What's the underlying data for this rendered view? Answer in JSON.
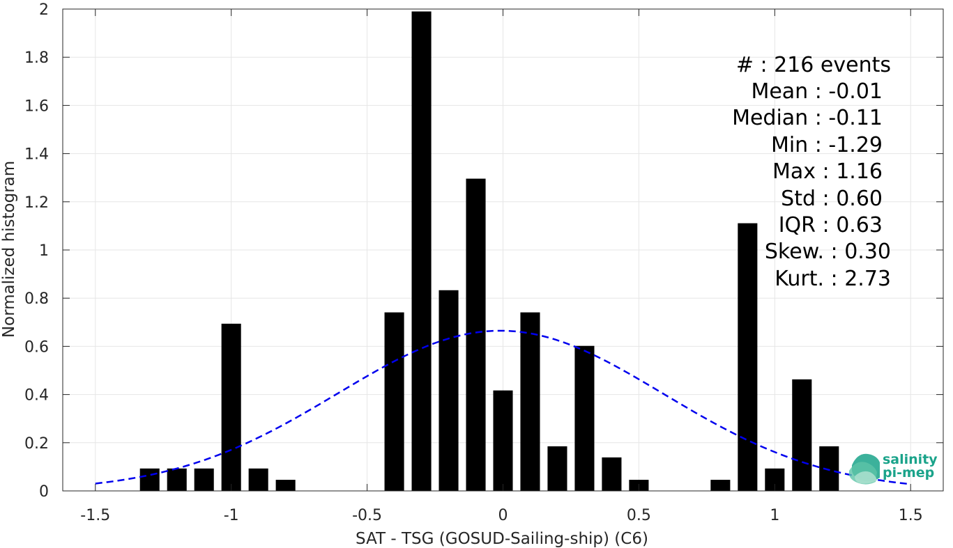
{
  "chart_data": {
    "type": "bar",
    "xlabel": "SAT - TSG (GOSUD-Sailing-ship) (C6)",
    "ylabel": "Normalized histogram",
    "xlim": [
      -1.62,
      1.62
    ],
    "ylim": [
      0,
      2
    ],
    "x_ticks": [
      -1.5,
      -1,
      -0.5,
      0,
      0.5,
      1,
      1.5
    ],
    "x_tick_labels": [
      "-1.5",
      "-1",
      "-0.5",
      "0",
      "0.5",
      "1",
      "1.5"
    ],
    "y_ticks": [
      0,
      0.2,
      0.4,
      0.6,
      0.8,
      1,
      1.2,
      1.4,
      1.6,
      1.8,
      2
    ],
    "y_tick_labels": [
      "0",
      "0.2",
      "0.4",
      "0.6",
      "0.8",
      "1",
      "1.2",
      "1.4",
      "1.6",
      "1.8",
      "2"
    ],
    "grid": true,
    "bar_width": 0.072,
    "bar_color": "#000000",
    "bars": [
      {
        "x": -1.3,
        "y": 0.093
      },
      {
        "x": -1.2,
        "y": 0.093
      },
      {
        "x": -1.1,
        "y": 0.093
      },
      {
        "x": -1.0,
        "y": 0.694
      },
      {
        "x": -0.9,
        "y": 0.093
      },
      {
        "x": -0.8,
        "y": 0.046
      },
      {
        "x": -0.4,
        "y": 0.741
      },
      {
        "x": -0.3,
        "y": 1.99
      },
      {
        "x": -0.2,
        "y": 0.833
      },
      {
        "x": -0.1,
        "y": 1.296
      },
      {
        "x": 0.0,
        "y": 0.417
      },
      {
        "x": 0.1,
        "y": 0.741
      },
      {
        "x": 0.2,
        "y": 0.185
      },
      {
        "x": 0.3,
        "y": 0.602
      },
      {
        "x": 0.4,
        "y": 0.139
      },
      {
        "x": 0.5,
        "y": 0.046
      },
      {
        "x": 0.8,
        "y": 0.046
      },
      {
        "x": 0.9,
        "y": 1.111
      },
      {
        "x": 1.0,
        "y": 0.093
      },
      {
        "x": 1.1,
        "y": 0.463
      },
      {
        "x": 1.2,
        "y": 0.185
      }
    ],
    "fit_curve": {
      "style": "dashed",
      "color": "#0000ee",
      "mean": -0.01,
      "std": 0.6,
      "x_range": [
        -1.5,
        1.5
      ]
    }
  },
  "stats": {
    "lines": [
      "#  : 216 events",
      "Mean : -0.01",
      "Median : -0.11",
      "Min : -1.29",
      "Max : 1.16",
      "Std : 0.60",
      "IQR : 0.63",
      "Skew. : 0.30",
      "Kurt. : 2.73"
    ]
  },
  "logo": {
    "line1": "salinity",
    "line2": "pi-mep",
    "color": "#1aa38a"
  }
}
